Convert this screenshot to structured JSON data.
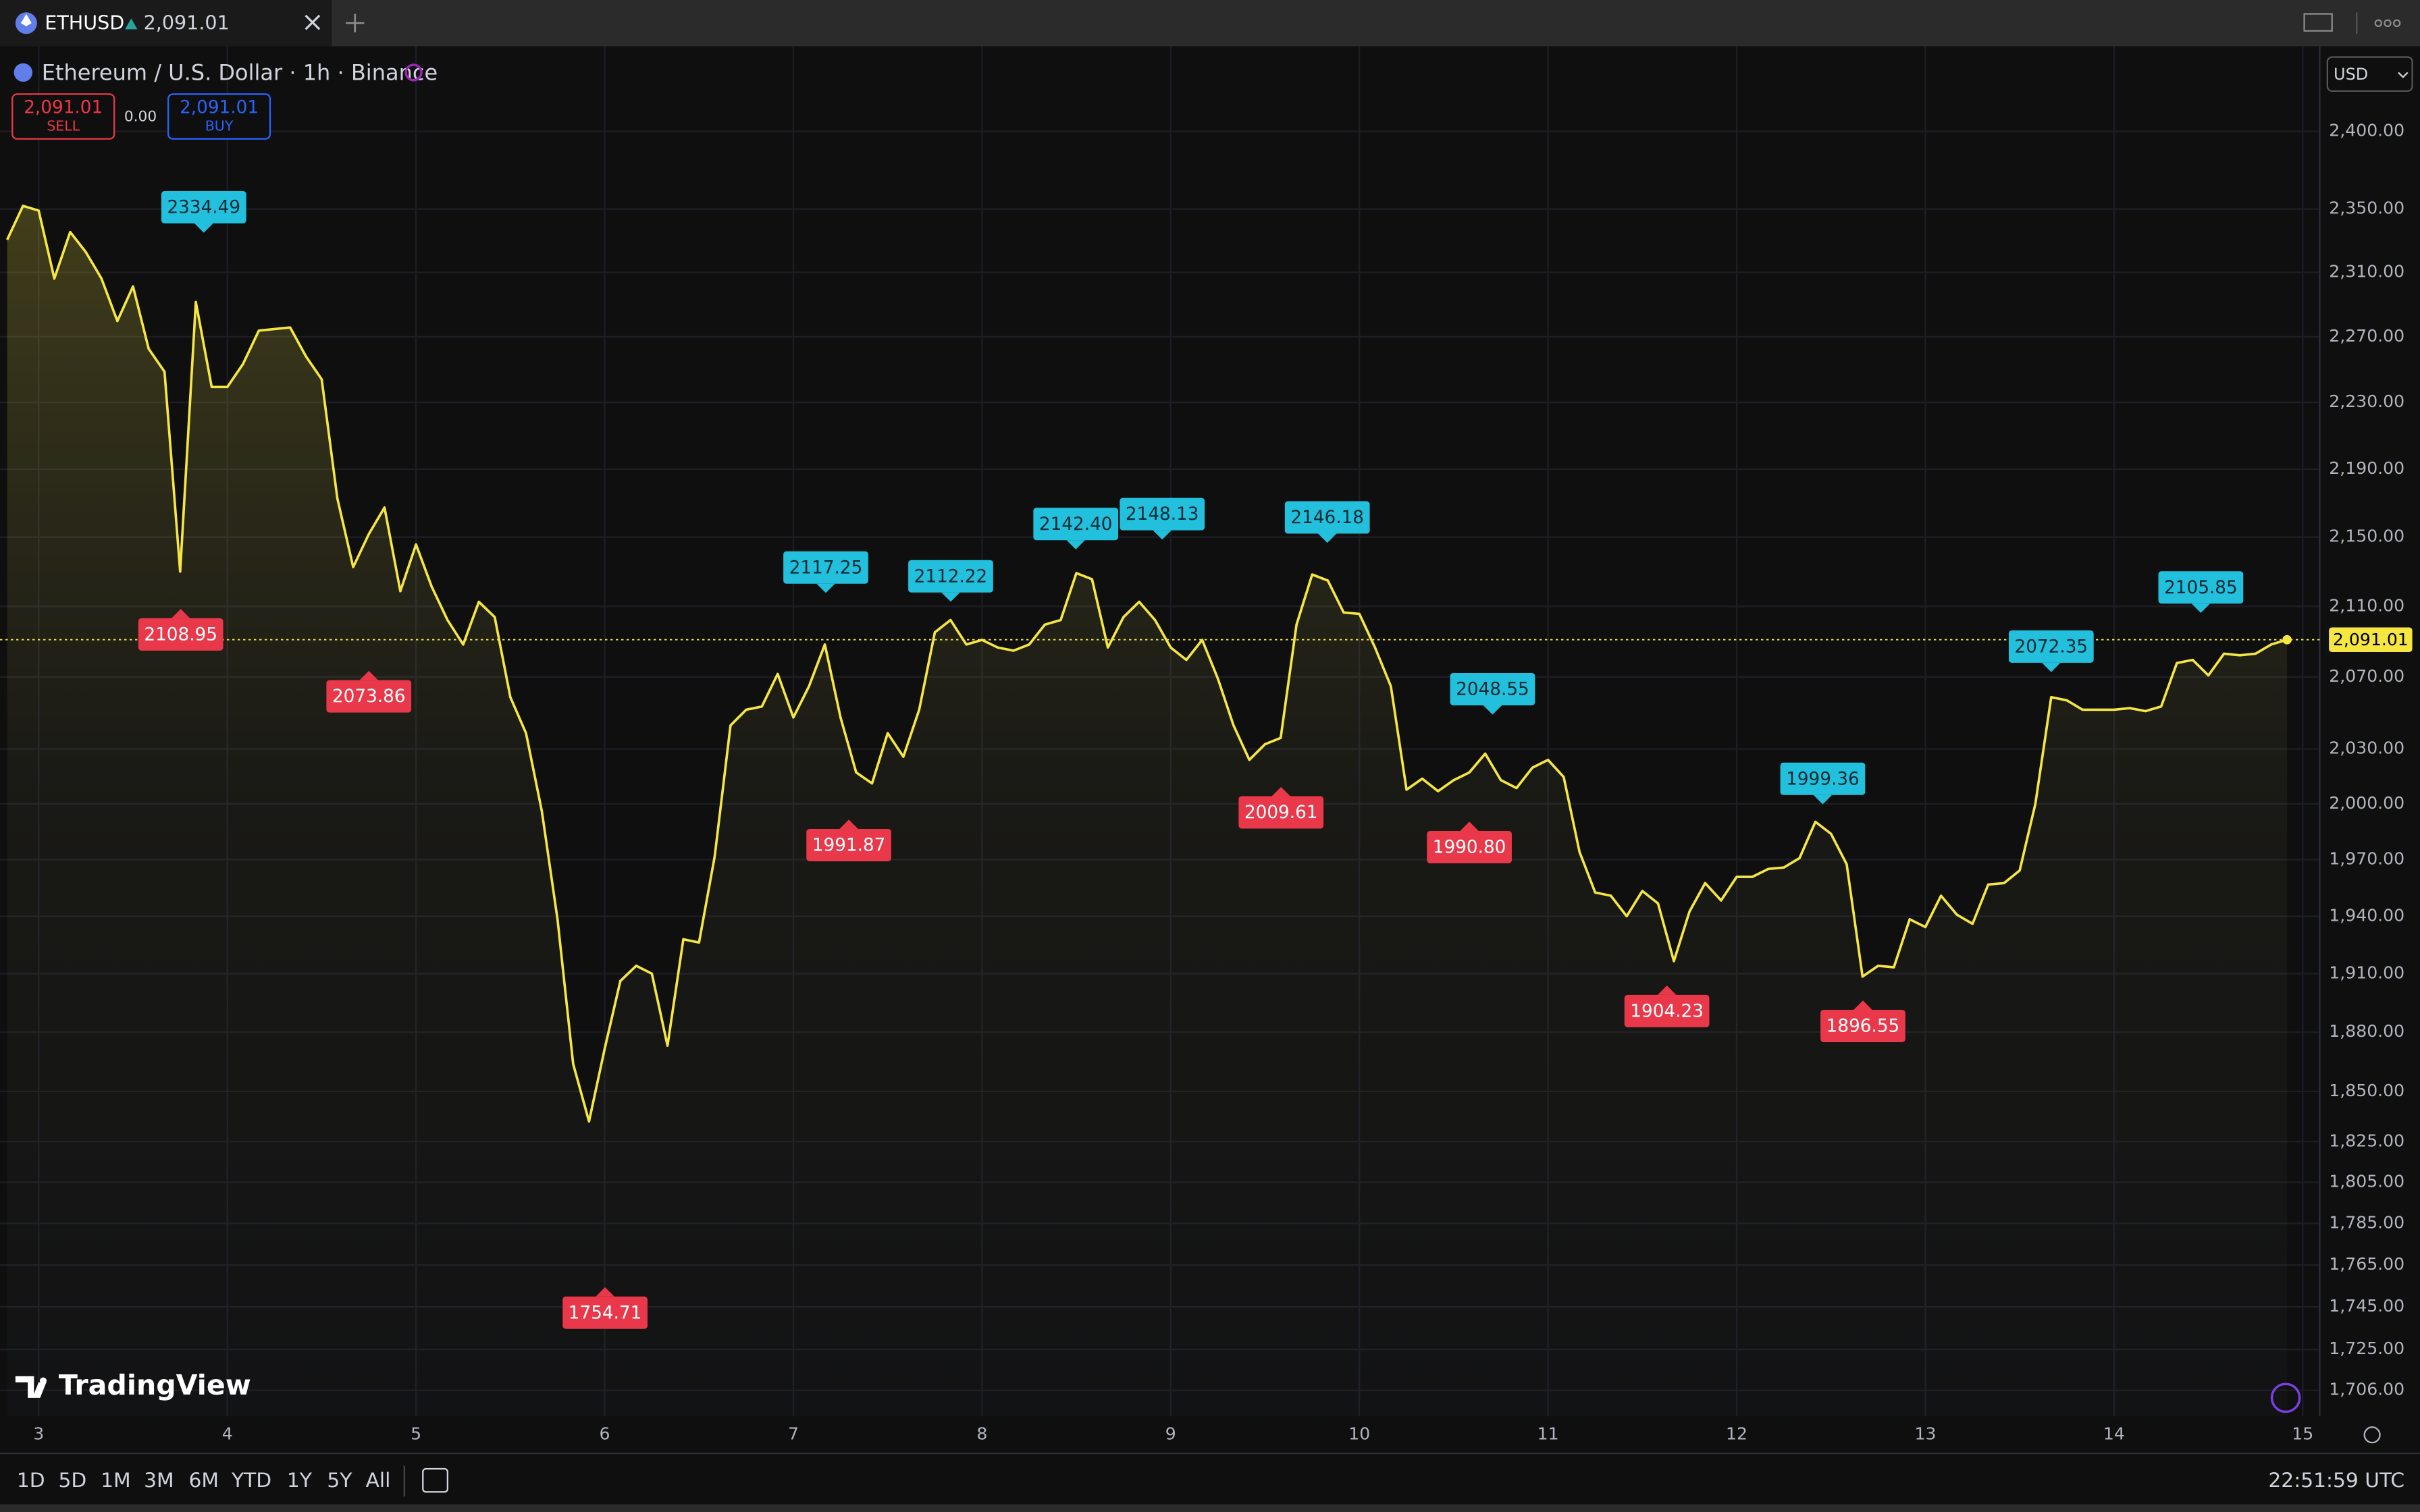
{
  "ui": {
    "tab_symbol": "ETHUSD",
    "tab_price": "2,091.01",
    "title": "Ethereum / U.S. Dollar · 1h · Binance",
    "sell_price": "2,091.01",
    "sell": "SELL",
    "spread": "0.00",
    "buy_price": "2,091.01",
    "buy": "BUY",
    "currency": "USD",
    "logo": "TradingView",
    "clock": "22:51:59 UTC",
    "ranges": [
      "1D",
      "5D",
      "1M",
      "3M",
      "6M",
      "YTD",
      "1Y",
      "5Y",
      "All"
    ]
  },
  "chart_data": {
    "type": "area",
    "color": "#f5e642",
    "log_scale": true,
    "grid": true,
    "xlim": [
      2.795,
      15.09
    ],
    "xticks": [
      3,
      4,
      5,
      6,
      7,
      8,
      9,
      10,
      11,
      12,
      13,
      14,
      15
    ],
    "ylim": [
      1694,
      2456
    ],
    "yticks": [
      {
        "value": 2400,
        "label": "2,400.00"
      },
      {
        "value": 2350,
        "label": "2,350.00"
      },
      {
        "value": 2310,
        "label": "2,310.00"
      },
      {
        "value": 2270,
        "label": "2,270.00"
      },
      {
        "value": 2230,
        "label": "2,230.00"
      },
      {
        "value": 2190,
        "label": "2,190.00"
      },
      {
        "value": 2150,
        "label": "2,150.00"
      },
      {
        "value": 2110,
        "label": "2,110.00"
      },
      {
        "value": 2070,
        "label": "2,070.00"
      },
      {
        "value": 2030,
        "label": "2,030.00"
      },
      {
        "value": 2000,
        "label": "2,000.00"
      },
      {
        "value": 1970,
        "label": "1,970.00"
      },
      {
        "value": 1940,
        "label": "1,940.00"
      },
      {
        "value": 1910,
        "label": "1,910.00"
      },
      {
        "value": 1880,
        "label": "1,880.00"
      },
      {
        "value": 1850,
        "label": "1,850.00"
      },
      {
        "value": 1825,
        "label": "1,825.00"
      },
      {
        "value": 1805,
        "label": "1,805.00"
      },
      {
        "value": 1785,
        "label": "1,785.00"
      },
      {
        "value": 1765,
        "label": "1,765.00"
      },
      {
        "value": 1745,
        "label": "1,745.00"
      },
      {
        "value": 1725,
        "label": "1,725.00"
      },
      {
        "value": 1706,
        "label": "1,706.00"
      }
    ],
    "x": [
      2.833,
      2.917,
      3,
      3.083,
      3.167,
      3.25,
      3.333,
      3.417,
      3.5,
      3.583,
      3.667,
      3.75,
      3.833,
      3.917,
      4,
      4.083,
      4.167,
      4.25,
      4.333,
      4.417,
      4.5,
      4.583,
      4.667,
      4.75,
      4.833,
      4.917,
      5,
      5.083,
      5.167,
      5.25,
      5.333,
      5.417,
      5.5,
      5.583,
      5.667,
      5.75,
      5.833,
      5.917,
      6,
      6.083,
      6.167,
      6.25,
      6.333,
      6.417,
      6.5,
      6.583,
      6.667,
      6.75,
      6.833,
      6.917,
      7,
      7.083,
      7.167,
      7.25,
      7.333,
      7.417,
      7.5,
      7.583,
      7.667,
      7.75,
      7.833,
      7.917,
      8,
      8.083,
      8.167,
      8.25,
      8.333,
      8.417,
      8.5,
      8.583,
      8.667,
      8.75,
      8.833,
      8.917,
      9,
      9.083,
      9.167,
      9.25,
      9.333,
      9.417,
      9.5,
      9.583,
      9.667,
      9.75,
      9.833,
      9.917,
      10,
      10.083,
      10.167,
      10.25,
      10.333,
      10.417,
      10.5,
      10.583,
      10.667,
      10.75,
      10.833,
      10.917,
      11,
      11.083,
      11.167,
      11.25,
      11.333,
      11.417,
      11.5,
      11.583,
      11.667,
      11.75,
      11.833,
      11.917,
      12,
      12.083,
      12.167,
      12.25,
      12.333,
      12.417,
      12.5,
      12.583,
      12.667,
      12.75,
      12.833,
      12.917,
      13,
      13.083,
      13.167,
      13.25,
      13.333,
      13.417,
      13.5,
      13.583,
      13.667,
      13.75,
      13.833,
      13.917,
      14,
      14.083,
      14.167,
      14.25,
      14.333,
      14.417,
      14.5,
      14.583,
      14.667,
      14.75,
      14.833,
      14.917
    ],
    "values": [
      2330.5,
      2352,
      2349,
      2306.1,
      2335.4,
      2322.7,
      2306.1,
      2279.7,
      2301.2,
      2262.6,
      2248.6,
      2130,
      2291.5,
      2239.3,
      2239.3,
      2253.3,
      2273.8,
      2274.8,
      2275.7,
      2257.9,
      2244,
      2172.7,
      2132.6,
      2151.8,
      2167.3,
      2118.7,
      2145.7,
      2121.3,
      2102.2,
      2088.3,
      2112.6,
      2103.9,
      2058.7,
      2038.7,
      1996,
      1938.4,
      1863.8,
      1835,
      1871.5,
      1906.2,
      1914.1,
      1910,
      1873.1,
      1927.9,
      1926.2,
      1971.6,
      2043,
      2051.7,
      2053.5,
      2071.7,
      2047.4,
      2064.8,
      2088.3,
      2047.4,
      2017.1,
      2011.1,
      2038.7,
      2025.7,
      2051.7,
      2095.2,
      2102.2,
      2088.3,
      2090.9,
      2086.6,
      2084.8,
      2088.3,
      2099.6,
      2102.2,
      2129.1,
      2125.6,
      2086.6,
      2103.9,
      2112.6,
      2102.2,
      2086.6,
      2079.6,
      2090.9,
      2069.1,
      2043,
      2024,
      2032.6,
      2036.1,
      2099.6,
      2128.3,
      2124.8,
      2106.5,
      2105.7,
      2086.6,
      2064.8,
      2007.7,
      2013.7,
      2006.9,
      2012.9,
      2017.1,
      2027.4,
      2012.9,
      2008.6,
      2019.7,
      2024,
      2014.6,
      1974.1,
      1952.5,
      1950.8,
      1940,
      1953.3,
      1946.7,
      1916.5,
      1942.5,
      1957.5,
      1948.3,
      1960.8,
      1960.8,
      1965,
      1965.8,
      1970.8,
      1990.3,
      1983.8,
      1967.5,
      1908.5,
      1914.1,
      1913.3,
      1938.4,
      1934.3,
      1950.8,
      1940.8,
      1936,
      1956.7,
      1957.5,
      1964.2,
      2000,
      2058.7,
      2056.9,
      2051.7,
      2051.7,
      2051.7,
      2052.6,
      2050.9,
      2053.5,
      2077.8,
      2079.6,
      2070.9,
      2083.1,
      2082.2,
      2083.1,
      2088.3,
      2091.01
    ],
    "last_price": {
      "value": 2091.01,
      "label": "2,091.01"
    },
    "highs": [
      {
        "x": 3.875,
        "value": 2334.49
      },
      {
        "x": 7.172,
        "value": 2117.25
      },
      {
        "x": 7.834,
        "value": 2112.22
      },
      {
        "x": 8.497,
        "value": 2142.4,
        "label": "2142.40"
      },
      {
        "x": 8.955,
        "value": 2148.13
      },
      {
        "x": 9.83,
        "value": 2146.18
      },
      {
        "x": 10.706,
        "value": 2048.55
      },
      {
        "x": 12.456,
        "value": 1999.36
      },
      {
        "x": 13.667,
        "value": 2072.35
      },
      {
        "x": 14.46,
        "value": 2105.85
      }
    ],
    "lows": [
      {
        "x": 3.753,
        "value": 2108.95
      },
      {
        "x": 4.75,
        "value": 2073.86
      },
      {
        "x": 6.002,
        "value": 1754.71
      },
      {
        "x": 7.294,
        "value": 1991.87
      },
      {
        "x": 9.585,
        "value": 2009.61
      },
      {
        "x": 10.583,
        "value": 1990.8,
        "label": "1990.80"
      },
      {
        "x": 11.63,
        "value": 1904.23
      },
      {
        "x": 12.669,
        "value": 1896.55
      }
    ]
  }
}
